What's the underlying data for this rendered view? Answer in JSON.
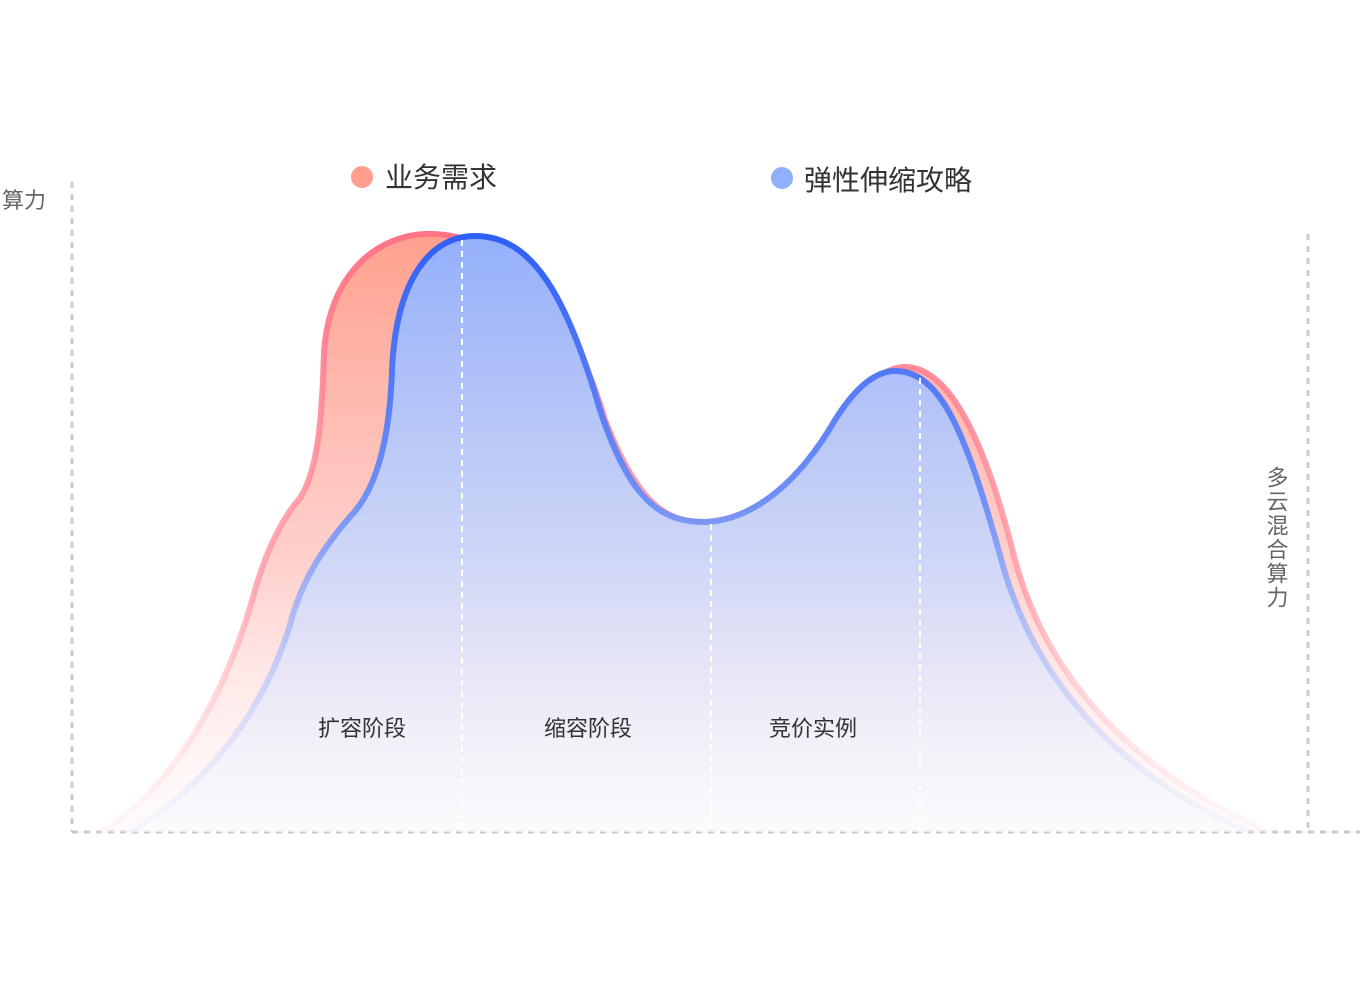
{
  "legend": {
    "demand": {
      "label": "业务需求",
      "color": "#ff9e8c"
    },
    "strategy": {
      "label": "弹性伸缩攻略",
      "color": "#8fb1fb"
    }
  },
  "axes": {
    "left_label": "算力",
    "right_label": "多云混合算力"
  },
  "phases": [
    {
      "label": "扩容阶段"
    },
    {
      "label": "缩容阶段"
    },
    {
      "label": "竞价实例"
    }
  ],
  "colors": {
    "demand_stroke": "#ff7a8a",
    "demand_fill": "#ffa694",
    "strategy_stroke": "#3565f5",
    "strategy_fill": "#9db6fb",
    "axis": "#cccccc"
  }
}
